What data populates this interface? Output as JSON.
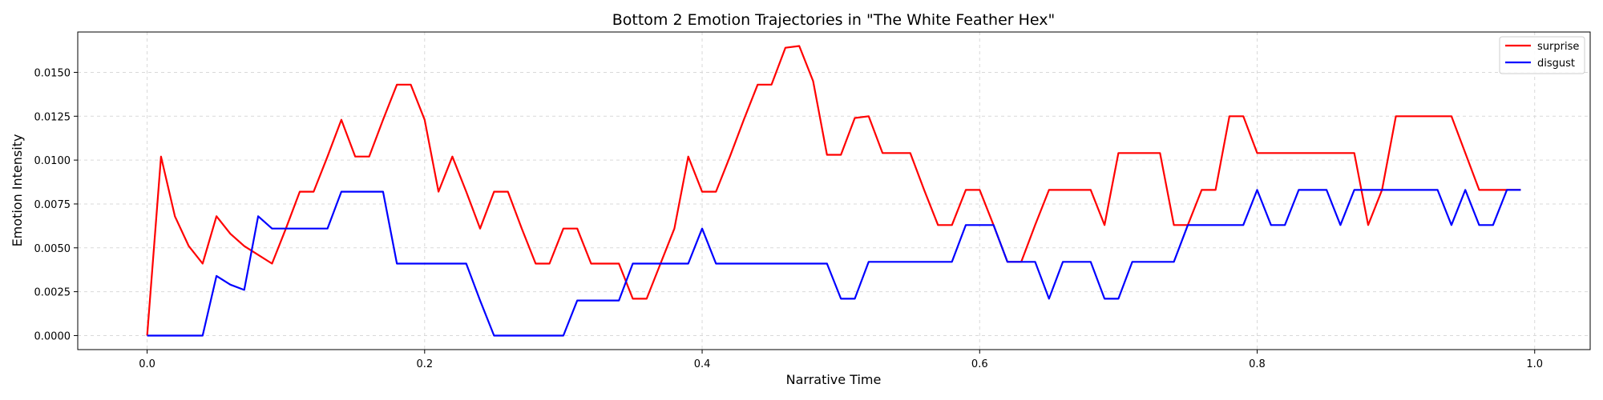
{
  "chart_data": {
    "type": "line",
    "title": "Bottom 2 Emotion Trajectories in \"The White Feather Hex\"",
    "xlabel": "Narrative Time",
    "ylabel": "Emotion Intensity",
    "xlim": [
      -0.05,
      1.04
    ],
    "ylim": [
      -0.0008,
      0.0173
    ],
    "xticks": [
      0.0,
      0.2,
      0.4,
      0.6,
      0.8,
      1.0
    ],
    "xtick_labels": [
      "0.0",
      "0.2",
      "0.4",
      "0.6",
      "0.8",
      "1.0"
    ],
    "yticks": [
      0.0,
      0.0025,
      0.005,
      0.0075,
      0.01,
      0.0125,
      0.015
    ],
    "ytick_labels": [
      "0.0000",
      "0.0025",
      "0.0050",
      "0.0075",
      "0.0100",
      "0.0125",
      "0.0150"
    ],
    "grid": true,
    "legend_position": "top-right",
    "x": [
      0.0,
      0.01,
      0.02,
      0.03,
      0.04,
      0.05,
      0.06,
      0.07,
      0.08,
      0.09,
      0.1,
      0.11,
      0.12,
      0.13,
      0.14,
      0.15,
      0.16,
      0.17,
      0.18,
      0.19,
      0.2,
      0.21,
      0.22,
      0.23,
      0.24,
      0.25,
      0.26,
      0.27,
      0.28,
      0.29,
      0.3,
      0.31,
      0.32,
      0.33,
      0.34,
      0.35,
      0.36,
      0.37,
      0.38,
      0.39,
      0.4,
      0.41,
      0.42,
      0.43,
      0.44,
      0.45,
      0.46,
      0.47,
      0.48,
      0.49,
      0.5,
      0.51,
      0.52,
      0.53,
      0.54,
      0.55,
      0.56,
      0.57,
      0.58,
      0.59,
      0.6,
      0.61,
      0.62,
      0.63,
      0.64,
      0.65,
      0.66,
      0.67,
      0.68,
      0.69,
      0.7,
      0.71,
      0.72,
      0.73,
      0.74,
      0.75,
      0.76,
      0.77,
      0.78,
      0.79,
      0.8,
      0.81,
      0.82,
      0.83,
      0.84,
      0.85,
      0.86,
      0.87,
      0.88,
      0.89,
      0.9,
      0.91,
      0.92,
      0.93,
      0.94,
      0.95,
      0.96,
      0.97,
      0.98,
      0.99
    ],
    "series": [
      {
        "name": "surprise",
        "color": "#ff0000",
        "values": [
          0.0,
          0.0102,
          0.0068,
          0.0051,
          0.0041,
          0.0068,
          0.0058,
          0.0051,
          0.0046,
          0.0041,
          0.0061,
          0.0082,
          0.0082,
          0.0102,
          0.0123,
          0.0102,
          0.0102,
          0.0123,
          0.0143,
          0.0143,
          0.0123,
          0.0082,
          0.0102,
          0.0082,
          0.0061,
          0.0082,
          0.0082,
          0.0061,
          0.0041,
          0.0041,
          0.0061,
          0.0061,
          0.0041,
          0.0041,
          0.0041,
          0.0021,
          0.0021,
          0.0041,
          0.0061,
          0.0102,
          0.0082,
          0.0082,
          0.0102,
          0.0123,
          0.0143,
          0.0143,
          0.0164,
          0.0165,
          0.0145,
          0.0103,
          0.0103,
          0.0124,
          0.0125,
          0.0104,
          0.0104,
          0.0104,
          0.0083,
          0.0063,
          0.0063,
          0.0083,
          0.0083,
          0.0063,
          0.0042,
          0.0042,
          0.0063,
          0.0083,
          0.0083,
          0.0083,
          0.0083,
          0.0063,
          0.0104,
          0.0104,
          0.0104,
          0.0104,
          0.0063,
          0.0063,
          0.0083,
          0.0083,
          0.0125,
          0.0125,
          0.0104,
          0.0104,
          0.0104,
          0.0104,
          0.0104,
          0.0104,
          0.0104,
          0.0104,
          0.0063,
          0.0083,
          0.0125,
          0.0125,
          0.0125,
          0.0125,
          0.0125,
          0.0104,
          0.0083,
          0.0083,
          0.0083,
          0.0083
        ]
      },
      {
        "name": "disgust",
        "color": "#0000ff",
        "values": [
          0.0,
          0.0,
          0.0,
          0.0,
          0.0,
          0.0034,
          0.0029,
          0.0026,
          0.0068,
          0.0061,
          0.0061,
          0.0061,
          0.0061,
          0.0061,
          0.0082,
          0.0082,
          0.0082,
          0.0082,
          0.0041,
          0.0041,
          0.0041,
          0.0041,
          0.0041,
          0.0041,
          0.002,
          0.0,
          0.0,
          0.0,
          0.0,
          0.0,
          0.0,
          0.002,
          0.002,
          0.002,
          0.002,
          0.0041,
          0.0041,
          0.0041,
          0.0041,
          0.0041,
          0.0061,
          0.0041,
          0.0041,
          0.0041,
          0.0041,
          0.0041,
          0.0041,
          0.0041,
          0.0041,
          0.0041,
          0.0021,
          0.0021,
          0.0042,
          0.0042,
          0.0042,
          0.0042,
          0.0042,
          0.0042,
          0.0042,
          0.0063,
          0.0063,
          0.0063,
          0.0042,
          0.0042,
          0.0042,
          0.0021,
          0.0042,
          0.0042,
          0.0042,
          0.0021,
          0.0021,
          0.0042,
          0.0042,
          0.0042,
          0.0042,
          0.0063,
          0.0063,
          0.0063,
          0.0063,
          0.0063,
          0.0083,
          0.0063,
          0.0063,
          0.0083,
          0.0083,
          0.0083,
          0.0063,
          0.0083,
          0.0083,
          0.0083,
          0.0083,
          0.0083,
          0.0083,
          0.0083,
          0.0063,
          0.0083,
          0.0063,
          0.0063,
          0.0083,
          0.0083
        ]
      }
    ]
  }
}
